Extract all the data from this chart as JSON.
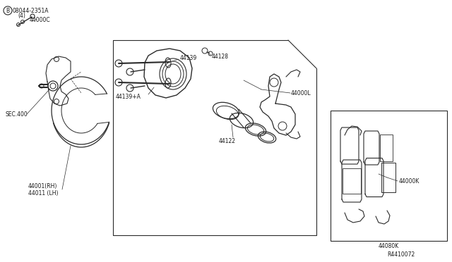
{
  "background_color": "#ffffff",
  "fig_width": 6.4,
  "fig_height": 3.72,
  "dpi": 100,
  "labels": {
    "B_bolt": "B 08044-2351A\n    (4)",
    "44000C": "44000C",
    "SEC400": "SEC.400",
    "44001": "44001(RH)",
    "44011": "44011 (LH)",
    "44139": "44139",
    "44128": "44128",
    "44139A": "44139+A",
    "44122": "44122",
    "44000L": "44000L",
    "44000K": "44000K",
    "44080K": "44080K",
    "R4410072": "R4410072"
  },
  "lc": "#2a2a2a",
  "tc": "#1a1a1a",
  "lw": 0.7
}
